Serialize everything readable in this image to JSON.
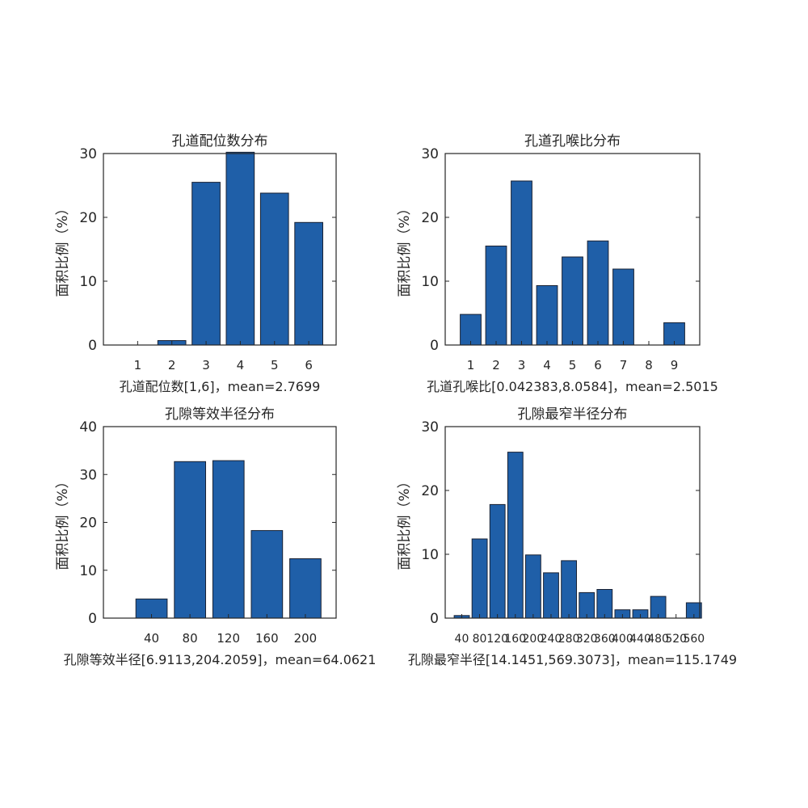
{
  "colors": {
    "bar": "#1f5fa8",
    "bar_edge": "#1a2233",
    "axis": "#262626"
  },
  "chart_data": [
    {
      "type": "bar",
      "title": "孔道配位数分布",
      "xlabel": "孔道配位数[1,6]，mean=2.7699",
      "ylabel": "面积比例（%）",
      "x": [
        1,
        2,
        3,
        4,
        5,
        6
      ],
      "values": [
        0,
        0.7,
        25.5,
        30.2,
        23.8,
        19.2
      ],
      "xticks": [
        1,
        2,
        3,
        4,
        5,
        6
      ],
      "xtick_labels": [
        "1",
        "2",
        "3",
        "4",
        "5",
        "6"
      ],
      "xlim": [
        0.0,
        6.8
      ],
      "ylim": [
        0,
        30
      ],
      "yticks": [
        0,
        10,
        20,
        30
      ],
      "ytick_labels": [
        "0",
        "10",
        "20",
        "30"
      ]
    },
    {
      "type": "bar",
      "title": "孔道孔喉比分布",
      "xlabel": "孔道孔喉比[0.042383,8.0584]，mean=2.5015",
      "ylabel": "面积比例（%）",
      "x": [
        1,
        2,
        3,
        4,
        5,
        6,
        7,
        8,
        9
      ],
      "values": [
        4.8,
        15.5,
        25.7,
        9.3,
        13.8,
        16.3,
        11.9,
        0,
        3.5
      ],
      "xticks": [
        1,
        2,
        3,
        4,
        5,
        6,
        7,
        8,
        9
      ],
      "xtick_labels": [
        "1",
        "2",
        "3",
        "4",
        "5",
        "6",
        "7",
        "8",
        "9"
      ],
      "xlim": [
        0.0,
        10.0
      ],
      "ylim": [
        0,
        30
      ],
      "yticks": [
        0,
        10,
        20,
        30
      ],
      "ytick_labels": [
        "0",
        "10",
        "20",
        "30"
      ]
    },
    {
      "type": "bar",
      "title": "孔隙等效半径分布",
      "xlabel": "孔隙等效半径[6.9113,204.2059]，mean=64.0621",
      "ylabel": "面积比例（%）",
      "x": [
        40,
        80,
        120,
        160,
        200
      ],
      "values": [
        4.0,
        32.7,
        32.9,
        18.3,
        12.4
      ],
      "xticks": [
        40,
        80,
        120,
        160,
        200
      ],
      "xtick_labels": [
        "40",
        "80",
        "120",
        "160",
        "200"
      ],
      "xlim": [
        -10,
        232
      ],
      "ylim": [
        0,
        40
      ],
      "yticks": [
        0,
        10,
        20,
        30,
        40
      ],
      "ytick_labels": [
        "0",
        "10",
        "20",
        "30",
        "40"
      ]
    },
    {
      "type": "bar",
      "title": "孔隙最窄半径分布",
      "xlabel": "孔隙最窄半径[14.1451,569.3073]，mean=115.1749",
      "ylabel": "面积比例（%）",
      "x": [
        40,
        80,
        120,
        160,
        200,
        240,
        280,
        320,
        360,
        400,
        440,
        480,
        520,
        560
      ],
      "values": [
        0.4,
        12.4,
        17.8,
        26.0,
        9.9,
        7.1,
        9.0,
        4.0,
        4.5,
        1.3,
        1.3,
        3.4,
        0,
        2.4
      ],
      "xticks": [
        40,
        80,
        120,
        160,
        200,
        240,
        280,
        320,
        360,
        400,
        440,
        480,
        520,
        560
      ],
      "xtick_labels": [
        "40",
        "80",
        "120",
        "160",
        "200",
        "240",
        "280",
        "320",
        "360",
        "400",
        "440",
        "480",
        "520",
        "560"
      ],
      "xlim": [
        3,
        573
      ],
      "ylim": [
        0,
        30
      ],
      "yticks": [
        0,
        10,
        20,
        30
      ],
      "ytick_labels": [
        "0",
        "10",
        "20",
        "30"
      ]
    }
  ]
}
